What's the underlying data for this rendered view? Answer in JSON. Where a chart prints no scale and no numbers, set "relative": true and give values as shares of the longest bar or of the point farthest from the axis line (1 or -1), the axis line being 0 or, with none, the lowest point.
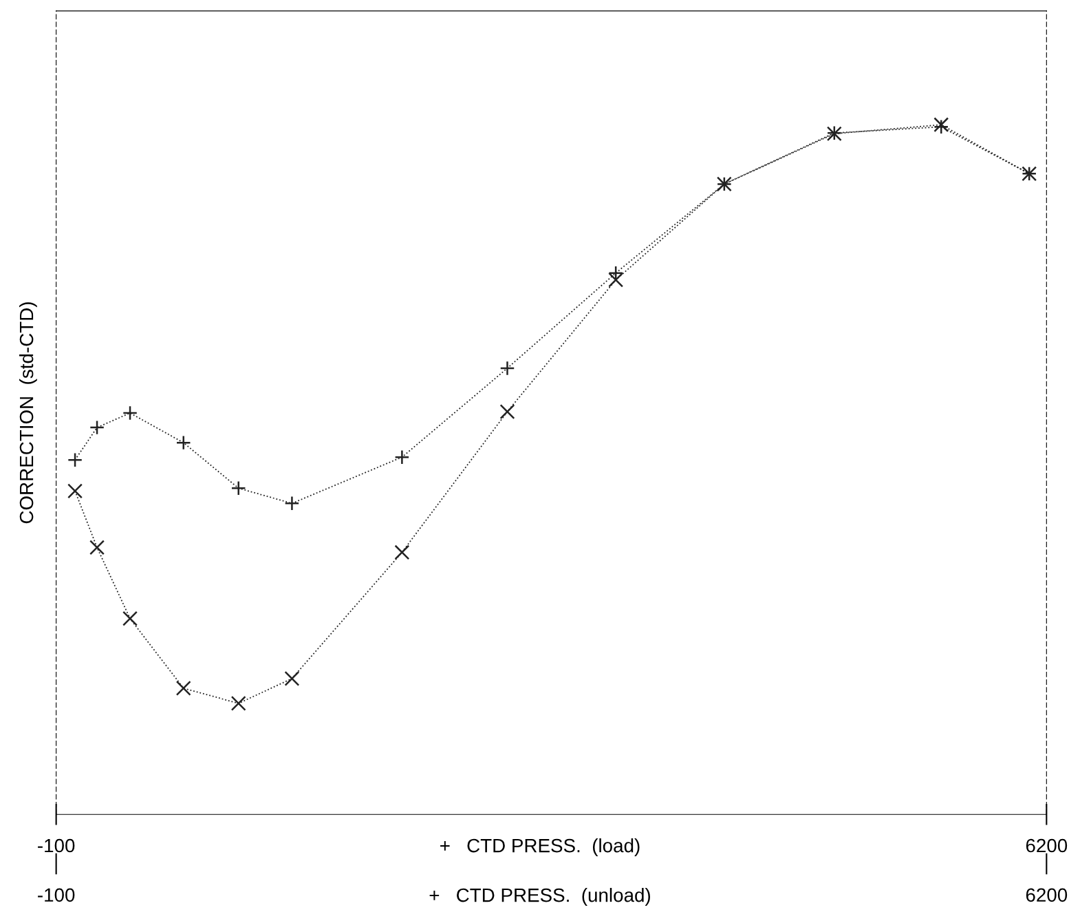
{
  "chart_data": {
    "type": "line",
    "relative": true,
    "ylabel": "CORRECTION  (std-CTD)",
    "xlabel": "+   CTD PRESS.  (load)",
    "x2label": "+   CTD PRESS.  (unload)",
    "xlim": [
      -100,
      6200
    ],
    "xticks": [
      -100,
      6200
    ],
    "x2lim": [
      -100,
      6200
    ],
    "x2ticks": [
      -100,
      6200
    ],
    "grid": false,
    "line_style": "dotted",
    "x": [
      20,
      160,
      370,
      710,
      1060,
      1400,
      2100,
      2770,
      3460,
      4150,
      4850,
      5530,
      6090
    ],
    "series": [
      {
        "color": "#222222",
        "marker": "plus",
        "values": [
          0.514,
          0.561,
          0.582,
          0.539,
          0.473,
          0.451,
          0.518,
          0.647,
          0.785,
          0.914,
          0.988,
          0.997,
          0.929
        ]
      },
      {
        "color": "#222222",
        "marker": "cross",
        "values": [
          0.469,
          0.387,
          0.284,
          0.183,
          0.161,
          0.197,
          0.38,
          0.584,
          0.775,
          0.914,
          0.987,
          1.0,
          0.929
        ]
      }
    ]
  }
}
